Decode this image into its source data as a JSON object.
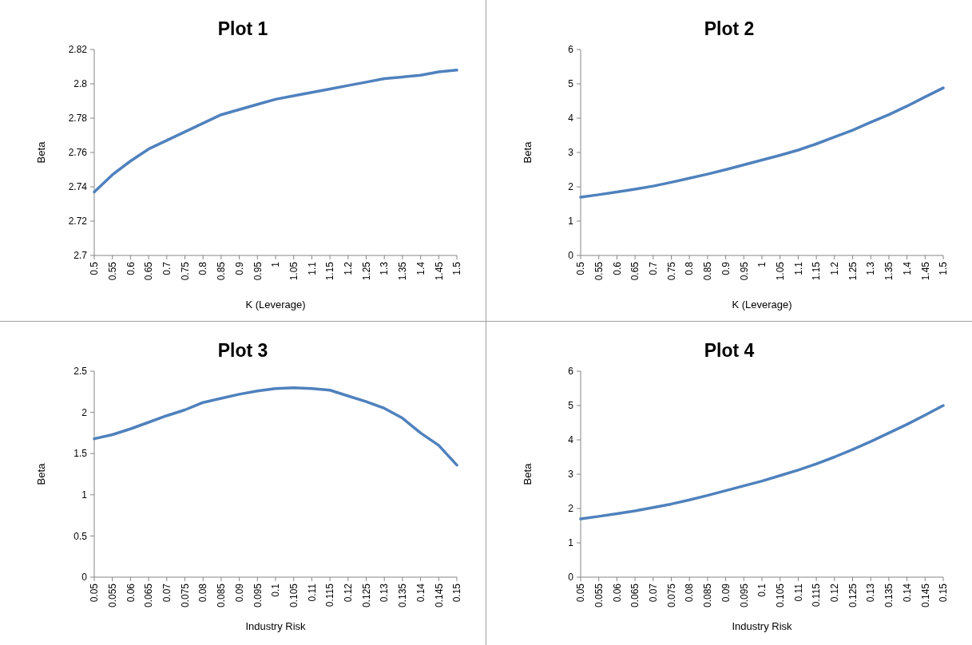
{
  "chart_data": [
    {
      "type": "line",
      "title": "Plot 1",
      "xlabel": "K (Leverage)",
      "ylabel": "Beta",
      "x": [
        0.5,
        0.55,
        0.6,
        0.65,
        0.7,
        0.75,
        0.8,
        0.85,
        0.9,
        0.95,
        1,
        1.05,
        1.1,
        1.15,
        1.2,
        1.25,
        1.3,
        1.35,
        1.4,
        1.45,
        1.5
      ],
      "series": [
        {
          "color": "#4f81bd",
          "values": [
            2.737,
            2.747,
            2.755,
            2.762,
            2.767,
            2.772,
            2.777,
            2.782,
            2.785,
            2.788,
            2.791,
            2.793,
            2.795,
            2.797,
            2.799,
            2.801,
            2.803,
            2.804,
            2.805,
            2.807,
            2.808
          ]
        }
      ],
      "xlim": [
        0.5,
        1.5
      ],
      "xticks": [
        0.5,
        0.55,
        0.6,
        0.65,
        0.7,
        0.75,
        0.8,
        0.85,
        0.9,
        0.95,
        1,
        1.05,
        1.1,
        1.15,
        1.2,
        1.25,
        1.3,
        1.35,
        1.4,
        1.45,
        1.5
      ],
      "ylim": [
        2.7,
        2.82
      ],
      "yticks": [
        2.7,
        2.72,
        2.74,
        2.76,
        2.78,
        2.8,
        2.82
      ]
    },
    {
      "type": "line",
      "title": "Plot 2",
      "xlabel": "K (Leverage)",
      "ylabel": "Beta",
      "x": [
        0.5,
        0.55,
        0.6,
        0.65,
        0.7,
        0.75,
        0.8,
        0.85,
        0.9,
        0.95,
        1,
        1.05,
        1.1,
        1.15,
        1.2,
        1.25,
        1.3,
        1.35,
        1.4,
        1.45,
        1.5
      ],
      "series": [
        {
          "color": "#4f81bd",
          "values": [
            1.7,
            1.77,
            1.85,
            1.93,
            2.02,
            2.13,
            2.25,
            2.37,
            2.5,
            2.64,
            2.78,
            2.92,
            3.07,
            3.25,
            3.45,
            3.65,
            3.88,
            4.1,
            4.35,
            4.62,
            4.88
          ]
        }
      ],
      "xlim": [
        0.5,
        1.5
      ],
      "xticks": [
        0.5,
        0.55,
        0.6,
        0.65,
        0.7,
        0.75,
        0.8,
        0.85,
        0.9,
        0.95,
        1,
        1.05,
        1.1,
        1.15,
        1.2,
        1.25,
        1.3,
        1.35,
        1.4,
        1.45,
        1.5
      ],
      "ylim": [
        0,
        6
      ],
      "yticks": [
        0,
        1,
        2,
        3,
        4,
        5,
        6
      ]
    },
    {
      "type": "line",
      "title": "Plot 3",
      "xlabel": "Industry Risk",
      "ylabel": "Beta",
      "x": [
        0.05,
        0.055,
        0.06,
        0.065,
        0.07,
        0.075,
        0.08,
        0.085,
        0.09,
        0.095,
        0.1,
        0.105,
        0.11,
        0.115,
        0.12,
        0.125,
        0.13,
        0.135,
        0.14,
        0.145,
        0.15
      ],
      "series": [
        {
          "color": "#4f81bd",
          "values": [
            1.68,
            1.73,
            1.8,
            1.88,
            1.96,
            2.03,
            2.12,
            2.17,
            2.22,
            2.26,
            2.29,
            2.3,
            2.29,
            2.27,
            2.2,
            2.13,
            2.05,
            1.93,
            1.75,
            1.6,
            1.36
          ]
        }
      ],
      "xlim": [
        0.05,
        0.15
      ],
      "xticks": [
        0.05,
        0.055,
        0.06,
        0.065,
        0.07,
        0.075,
        0.08,
        0.085,
        0.09,
        0.095,
        0.1,
        0.105,
        0.11,
        0.115,
        0.12,
        0.125,
        0.13,
        0.135,
        0.14,
        0.145,
        0.15
      ],
      "ylim": [
        0,
        2.5
      ],
      "yticks": [
        0,
        0.5,
        1,
        1.5,
        2,
        2.5
      ]
    },
    {
      "type": "line",
      "title": "Plot 4",
      "xlabel": "Industry Risk",
      "ylabel": "Beta",
      "x": [
        0.05,
        0.055,
        0.06,
        0.065,
        0.07,
        0.075,
        0.08,
        0.085,
        0.09,
        0.095,
        0.1,
        0.105,
        0.11,
        0.115,
        0.12,
        0.125,
        0.13,
        0.135,
        0.14,
        0.145,
        0.15
      ],
      "series": [
        {
          "color": "#4f81bd",
          "values": [
            1.7,
            1.77,
            1.85,
            1.93,
            2.03,
            2.13,
            2.25,
            2.38,
            2.52,
            2.66,
            2.8,
            2.96,
            3.12,
            3.3,
            3.5,
            3.72,
            3.95,
            4.2,
            4.45,
            4.72,
            5.0
          ]
        }
      ],
      "xlim": [
        0.05,
        0.15
      ],
      "xticks": [
        0.05,
        0.055,
        0.06,
        0.065,
        0.07,
        0.075,
        0.08,
        0.085,
        0.09,
        0.095,
        0.1,
        0.105,
        0.11,
        0.115,
        0.12,
        0.125,
        0.13,
        0.135,
        0.14,
        0.145,
        0.15
      ],
      "ylim": [
        0,
        6
      ],
      "yticks": [
        0,
        1,
        2,
        3,
        4,
        5,
        6
      ]
    }
  ]
}
